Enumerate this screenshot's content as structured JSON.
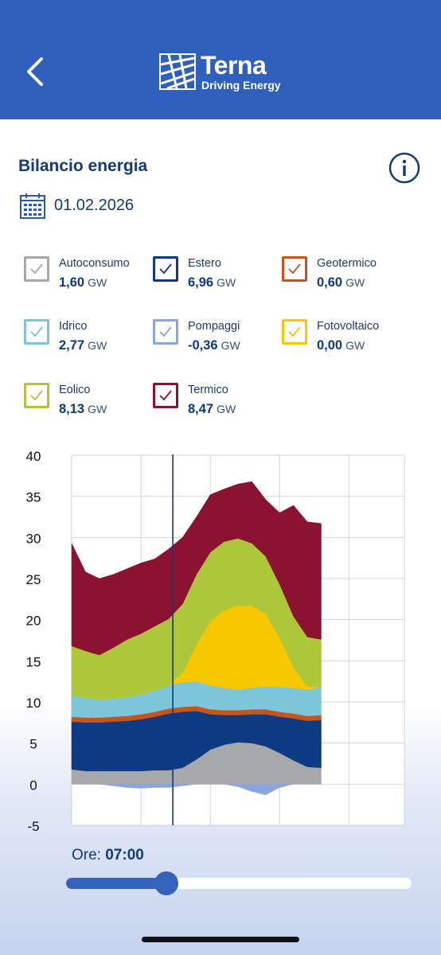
{
  "header": {
    "back_icon": "chevron-left-icon",
    "logo_name": "Terna",
    "logo_tagline": "Driving Energy"
  },
  "page": {
    "title": "Bilancio energia",
    "info_icon": "info-icon",
    "calendar_icon": "calendar-icon",
    "date": "01.02.2026"
  },
  "legend": [
    {
      "name": "Autoconsumo",
      "value": "1,60",
      "unit": "GW",
      "color": "#a6a8ab",
      "checked": true
    },
    {
      "name": "Estero",
      "value": "6,96",
      "unit": "GW",
      "color": "#0d3a80",
      "checked": true
    },
    {
      "name": "Geotermico",
      "value": "0,60",
      "unit": "GW",
      "color": "#c9541b",
      "checked": true
    },
    {
      "name": "Idrico",
      "value": "2,77",
      "unit": "GW",
      "color": "#7dc5d8",
      "checked": true
    },
    {
      "name": "Pompaggi",
      "value": "-0,36",
      "unit": "GW",
      "color": "#8aa6e0",
      "checked": true
    },
    {
      "name": "Fotovoltaico",
      "value": "0,00",
      "unit": "GW",
      "color": "#f7c700",
      "checked": true
    },
    {
      "name": "Eolico",
      "value": "8,13",
      "unit": "GW",
      "color": "#aec63a",
      "checked": true
    },
    {
      "name": "Termico",
      "value": "8,47",
      "unit": "GW",
      "color": "#8b1230",
      "checked": true
    }
  ],
  "chart_data": {
    "type": "area",
    "stacked": true,
    "ylim": [
      -5,
      40
    ],
    "yticks": [
      "40",
      "35",
      "30",
      "25",
      "20",
      "15",
      "10",
      "5",
      "0",
      "-5"
    ],
    "ytick_values": [
      40,
      35,
      30,
      25,
      20,
      15,
      10,
      5,
      0,
      -5
    ],
    "grid": true,
    "x_hours": [
      0,
      1,
      2,
      3,
      4,
      5,
      6,
      7,
      8,
      9,
      10,
      11,
      12,
      13,
      14,
      15,
      16,
      17,
      18,
      19,
      20,
      21,
      22,
      23,
      24
    ],
    "x_range": [
      0,
      24
    ],
    "data_end_hour": 18,
    "vertical_gridlines_hours": [
      0,
      5,
      10,
      15,
      20,
      24
    ],
    "cursor_hour": 7.3,
    "series": [
      {
        "name": "Autoconsumo",
        "color": "#a6a8ab",
        "x": [
          0,
          1,
          2,
          3,
          4,
          5,
          6,
          7,
          8,
          9,
          10,
          11,
          12,
          13,
          14,
          15,
          16,
          17,
          18
        ],
        "values": [
          1.8,
          1.6,
          1.6,
          1.6,
          1.6,
          1.6,
          1.7,
          1.7,
          2.0,
          3.0,
          4.2,
          4.8,
          5.1,
          5.0,
          4.6,
          3.8,
          2.9,
          2.1,
          2.0
        ]
      },
      {
        "name": "Estero",
        "color": "#0d3a80",
        "x": [
          0,
          1,
          2,
          3,
          4,
          5,
          6,
          7,
          8,
          9,
          10,
          11,
          12,
          13,
          14,
          15,
          16,
          17,
          18
        ],
        "values": [
          5.8,
          5.9,
          5.9,
          6.0,
          6.1,
          6.3,
          6.5,
          6.9,
          6.8,
          5.9,
          4.3,
          3.6,
          3.3,
          3.5,
          3.9,
          4.4,
          5.1,
          5.6,
          5.8
        ]
      },
      {
        "name": "Geotermico",
        "color": "#c9541b",
        "x": [
          0,
          1,
          2,
          3,
          4,
          5,
          6,
          7,
          8,
          9,
          10,
          11,
          12,
          13,
          14,
          15,
          16,
          17,
          18
        ],
        "values": [
          0.6,
          0.6,
          0.6,
          0.6,
          0.6,
          0.6,
          0.6,
          0.6,
          0.6,
          0.6,
          0.6,
          0.6,
          0.6,
          0.6,
          0.6,
          0.6,
          0.6,
          0.6,
          0.6
        ]
      },
      {
        "name": "Idrico",
        "color": "#7dc5d8",
        "x": [
          0,
          1,
          2,
          3,
          4,
          5,
          6,
          7,
          8,
          9,
          10,
          11,
          12,
          13,
          14,
          15,
          16,
          17,
          18
        ],
        "values": [
          2.6,
          2.4,
          2.2,
          2.2,
          2.3,
          2.4,
          2.6,
          2.8,
          3.0,
          3.0,
          2.9,
          2.7,
          2.5,
          2.6,
          2.8,
          3.0,
          3.1,
          3.2,
          3.4
        ]
      },
      {
        "name": "Pompaggi",
        "color": "#8aa6e0",
        "x": [
          0,
          1,
          2,
          3,
          4,
          5,
          6,
          7,
          8,
          9,
          10,
          11,
          12,
          13,
          14,
          15,
          16,
          17,
          18
        ],
        "values": [
          0,
          0,
          0,
          -0.2,
          -0.4,
          -0.5,
          -0.4,
          -0.4,
          -0.2,
          0,
          0,
          0,
          -0.3,
          -0.9,
          -1.3,
          -0.4,
          0,
          0,
          0
        ]
      },
      {
        "name": "Fotovoltaico",
        "color": "#f7c700",
        "x": [
          0,
          1,
          2,
          3,
          4,
          5,
          6,
          7,
          8,
          9,
          10,
          11,
          12,
          13,
          14,
          15,
          16,
          17,
          18
        ],
        "values": [
          0,
          0,
          0,
          0,
          0,
          0,
          0,
          0,
          1.2,
          4.5,
          7.8,
          9.5,
          10.2,
          10.0,
          8.8,
          6.0,
          2.5,
          0.4,
          0
        ]
      },
      {
        "name": "Eolico",
        "color": "#aec63a",
        "x": [
          0,
          1,
          2,
          3,
          4,
          5,
          6,
          7,
          8,
          9,
          10,
          11,
          12,
          13,
          14,
          15,
          16,
          17,
          18
        ],
        "values": [
          6.0,
          5.7,
          5.4,
          6.2,
          7.0,
          7.4,
          7.8,
          8.1,
          8.3,
          8.5,
          8.4,
          8.3,
          8.2,
          7.6,
          7.0,
          6.5,
          6.2,
          6.0,
          5.8
        ]
      },
      {
        "name": "Termico",
        "color": "#8b1230",
        "x": [
          0,
          1,
          2,
          3,
          4,
          5,
          6,
          7,
          8,
          9,
          10,
          11,
          12,
          13,
          14,
          15,
          16,
          17,
          18
        ],
        "values": [
          12.5,
          9.6,
          9.3,
          8.9,
          8.6,
          8.6,
          8.2,
          8.5,
          8.1,
          7.0,
          7.0,
          6.4,
          6.6,
          7.5,
          6.9,
          8.7,
          13.5,
          14.0,
          14.1
        ]
      }
    ]
  },
  "time_slider": {
    "label": "Ore:",
    "value": "07:00",
    "position_fraction": 0.29
  }
}
